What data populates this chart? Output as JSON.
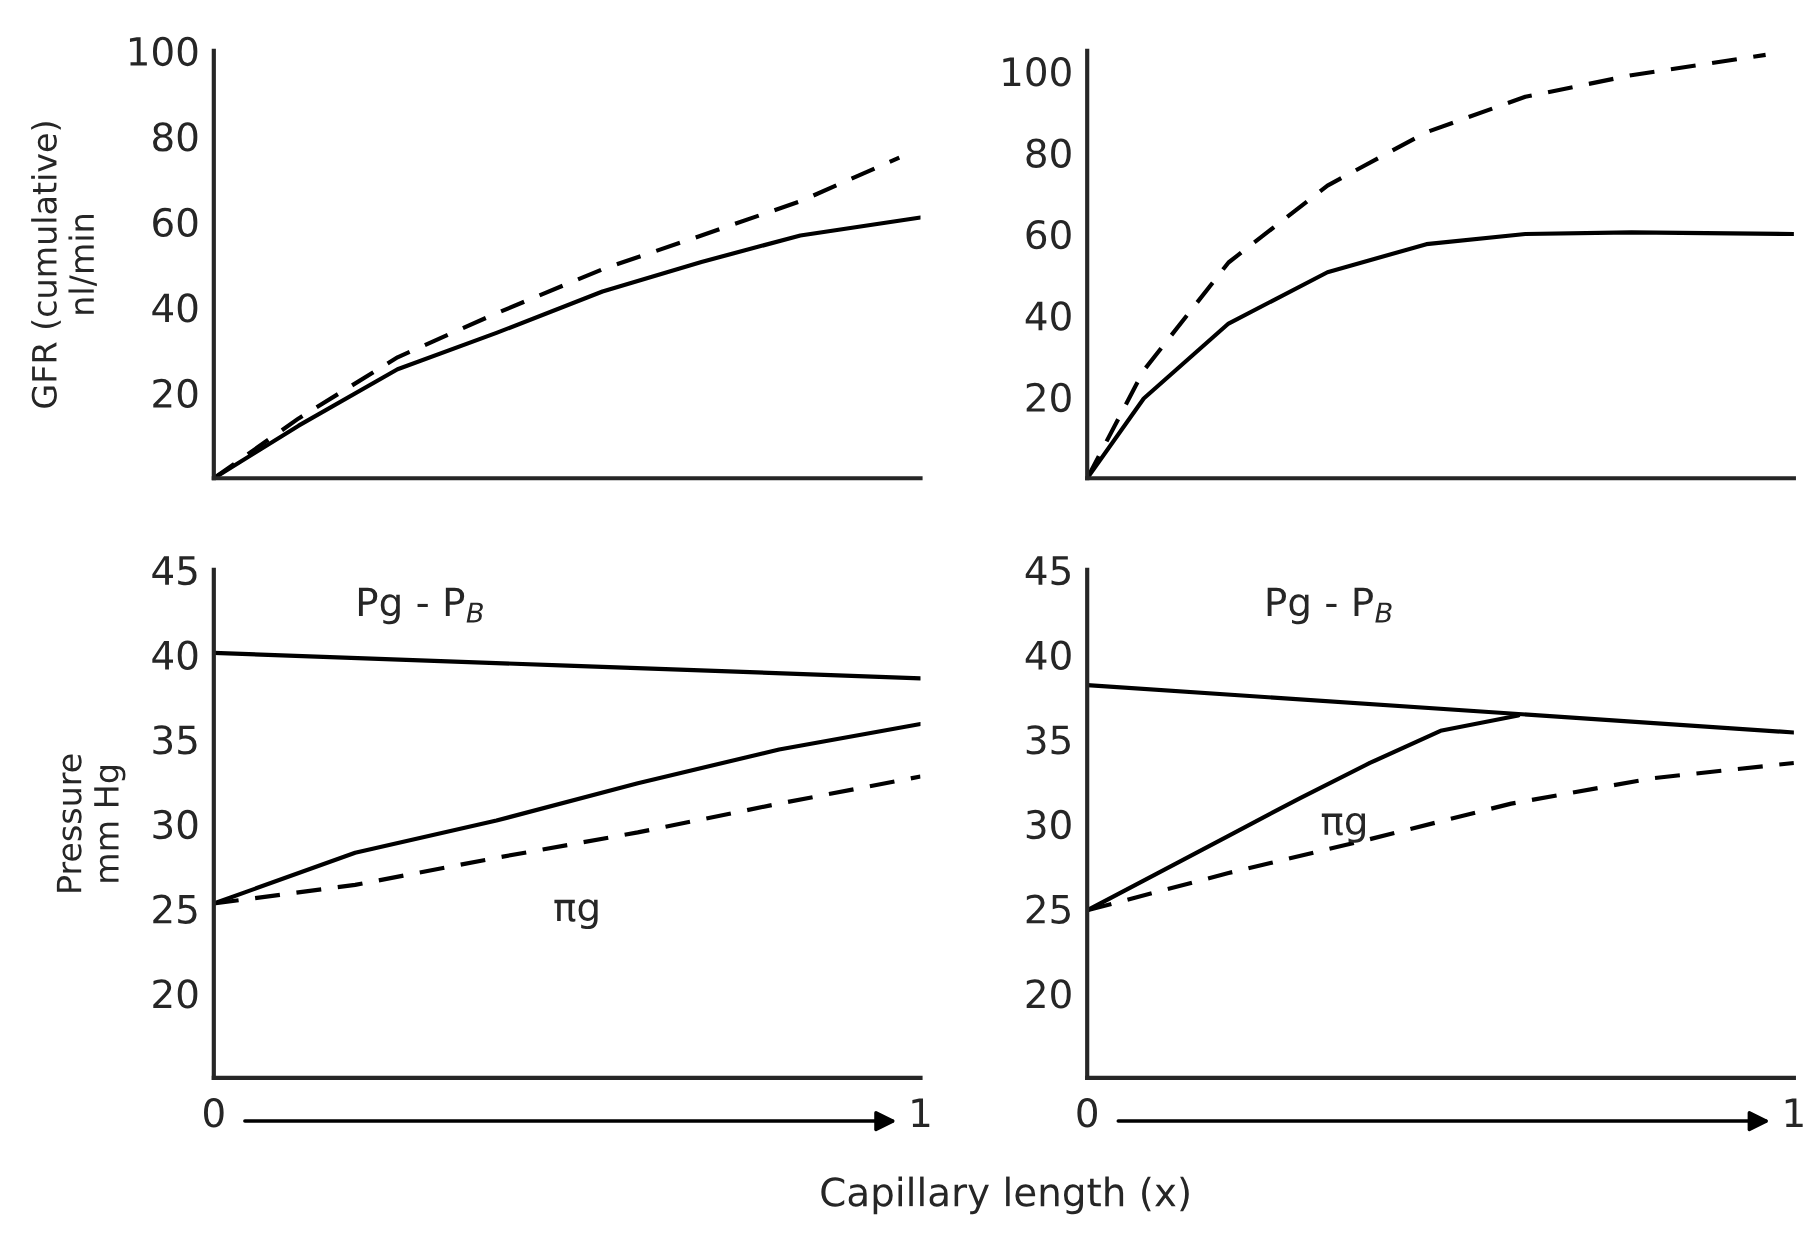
{
  "chart_data": [
    {
      "type": "line",
      "ylabel": "GFR (cumulative)\nnl/min",
      "xlim": [
        0,
        1
      ],
      "ylim": [
        0,
        100
      ],
      "yticks": [
        20,
        40,
        60,
        80,
        100
      ],
      "tick_labels": "y",
      "grid": false,
      "series": [
        {
          "color": "#000000",
          "line_style": "solid",
          "x": [
            0,
            0.12,
            0.26,
            0.4,
            0.55,
            0.69,
            0.83,
            1.0
          ],
          "values": [
            0,
            12.3,
            25.5,
            34,
            43.7,
            50.6,
            56.8,
            61
          ]
        },
        {
          "color": "#000000",
          "line_style": "dashed",
          "x": [
            0,
            0.12,
            0.26,
            0.4,
            0.55,
            0.69,
            0.83,
            0.97
          ],
          "values": [
            0,
            14,
            28.3,
            38.6,
            48.9,
            56.8,
            64.8,
            75
          ]
        }
      ]
    },
    {
      "type": "line",
      "xlim": [
        0,
        1
      ],
      "ylim": [
        0,
        105
      ],
      "yticks": [
        20,
        40,
        60,
        80,
        100
      ],
      "tick_labels": "y",
      "grid": false,
      "series": [
        {
          "color": "#000000",
          "line_style": "solid",
          "x": [
            0,
            0.08,
            0.2,
            0.34,
            0.48,
            0.62,
            0.77,
            1.0
          ],
          "values": [
            0,
            19.6,
            38,
            50.6,
            57.5,
            60,
            60.4,
            60
          ]
        },
        {
          "color": "#000000",
          "line_style": "dashed",
          "x": [
            0,
            0.08,
            0.2,
            0.34,
            0.48,
            0.62,
            0.77,
            0.96
          ],
          "values": [
            0,
            26.5,
            53,
            71.9,
            85,
            93.7,
            99,
            104
          ]
        }
      ]
    },
    {
      "type": "line",
      "ylabel": "Pressure\nmm Hg",
      "xlabel": "Capillary length (x)",
      "xlim": [
        0,
        1
      ],
      "xticks": [
        0,
        1
      ],
      "ylim": [
        15,
        45
      ],
      "yticks": [
        20,
        25,
        30,
        35,
        40,
        45
      ],
      "grid": false,
      "annotations": [
        "Pg - P$_{B}$",
        "πg"
      ],
      "series": [
        {
          "color": "#000000",
          "line_style": "solid",
          "x": [
            0,
            0.5,
            1.0
          ],
          "values": [
            40.1,
            39.35,
            38.6
          ]
        },
        {
          "color": "#000000",
          "line_style": "solid",
          "x": [
            0,
            0.2,
            0.4,
            0.6,
            0.8,
            1.0
          ],
          "values": [
            25.3,
            28.3,
            30.2,
            32.4,
            34.4,
            35.9
          ]
        },
        {
          "color": "#000000",
          "line_style": "dashed",
          "x": [
            0,
            0.2,
            0.4,
            0.6,
            0.8,
            1.0
          ],
          "values": [
            25.3,
            26.4,
            28.0,
            29.5,
            31.2,
            32.8
          ]
        }
      ]
    },
    {
      "type": "line",
      "xlim": [
        0,
        1
      ],
      "xticks": [
        0,
        1
      ],
      "ylim": [
        15,
        45
      ],
      "yticks": [
        20,
        25,
        30,
        35,
        40,
        45
      ],
      "grid": false,
      "annotations": [
        "Pg - P$_{B}$",
        "πg"
      ],
      "series": [
        {
          "color": "#000000",
          "line_style": "solid",
          "x": [
            0,
            1.0
          ],
          "values": [
            38.2,
            35.4
          ]
        },
        {
          "color": "#000000",
          "line_style": "solid",
          "x": [
            0,
            0.1,
            0.2,
            0.3,
            0.4,
            0.5,
            0.61
          ],
          "values": [
            24.9,
            27.1,
            29.3,
            31.5,
            33.6,
            35.5,
            36.4
          ]
        },
        {
          "color": "#000000",
          "line_style": "dashed",
          "x": [
            0,
            0.2,
            0.4,
            0.6,
            0.8,
            1.0
          ],
          "values": [
            24.9,
            27.1,
            29.1,
            31.2,
            32.7,
            33.6
          ]
        }
      ]
    }
  ]
}
